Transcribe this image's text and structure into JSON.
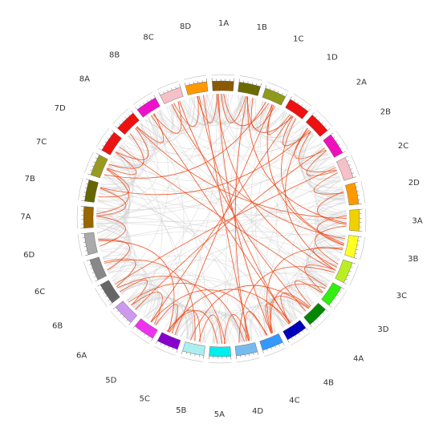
{
  "chromosomes": [
    {
      "name": "1A",
      "color": "#8b5a00"
    },
    {
      "name": "1B",
      "color": "#6b6b00"
    },
    {
      "name": "1C",
      "color": "#8e9a1a"
    },
    {
      "name": "1D",
      "color": "#ee1111"
    },
    {
      "name": "2A",
      "color": "#ee1111"
    },
    {
      "name": "2B",
      "color": "#ee11bb"
    },
    {
      "name": "2C",
      "color": "#f5c0c8"
    },
    {
      "name": "2D",
      "color": "#ff9900"
    },
    {
      "name": "3A",
      "color": "#f0d000"
    },
    {
      "name": "3B",
      "color": "#ffff22"
    },
    {
      "name": "3C",
      "color": "#bbee22"
    },
    {
      "name": "3D",
      "color": "#33ee11"
    },
    {
      "name": "4A",
      "color": "#008800"
    },
    {
      "name": "4B",
      "color": "#0000bb"
    },
    {
      "name": "4C",
      "color": "#3399ff"
    },
    {
      "name": "4D",
      "color": "#77bbee"
    },
    {
      "name": "5A",
      "color": "#00eeee"
    },
    {
      "name": "5B",
      "color": "#aaeeee"
    },
    {
      "name": "5C",
      "color": "#8800cc"
    },
    {
      "name": "5D",
      "color": "#ee33ee"
    },
    {
      "name": "6A",
      "color": "#cc99ee"
    },
    {
      "name": "6B",
      "color": "#666666"
    },
    {
      "name": "6C",
      "color": "#888888"
    },
    {
      "name": "6D",
      "color": "#aaaaaa"
    },
    {
      "name": "7A",
      "color": "#996600"
    },
    {
      "name": "7B",
      "color": "#666600"
    },
    {
      "name": "7C",
      "color": "#999922"
    },
    {
      "name": "7D",
      "color": "#ee1111"
    },
    {
      "name": "8A",
      "color": "#ee1111"
    },
    {
      "name": "8B",
      "color": "#ee11cc"
    },
    {
      "name": "8C",
      "color": "#f5c0c8"
    },
    {
      "name": "8D",
      "color": "#ff9900"
    }
  ],
  "link_color": "#f04a1a",
  "background_link_color": "#d0d0d0"
}
